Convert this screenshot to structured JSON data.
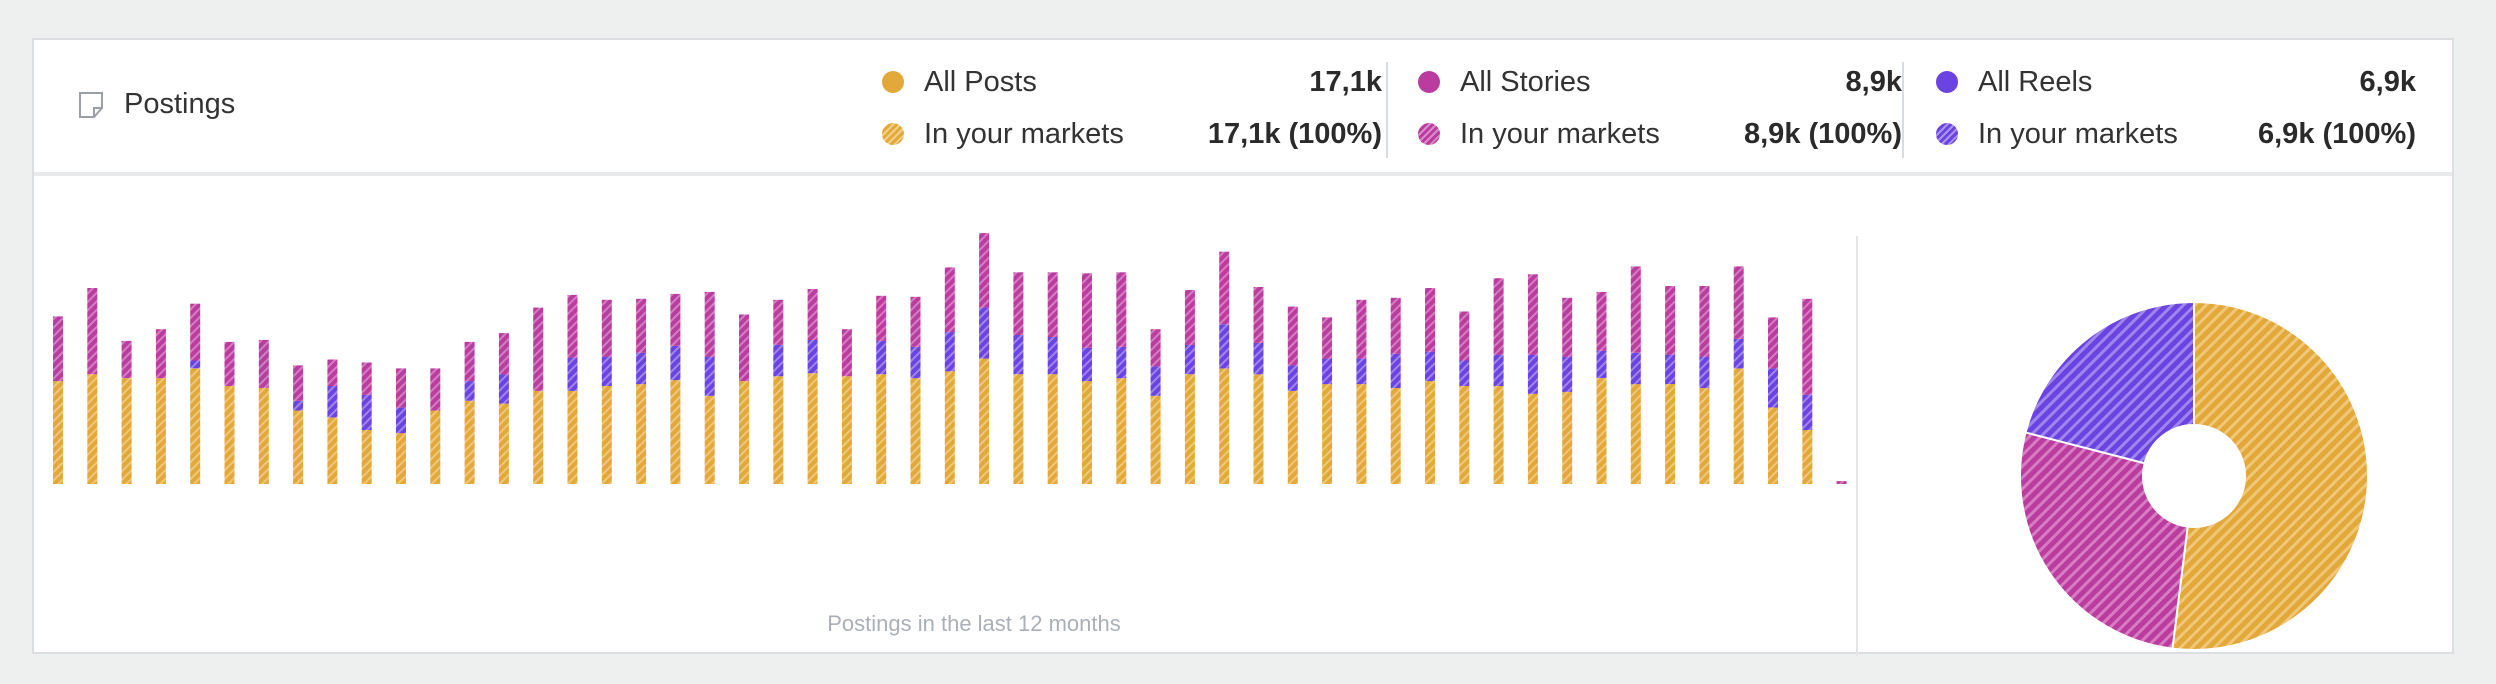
{
  "card": {
    "title": "Postings",
    "title_icon": "note-icon"
  },
  "legend": [
    {
      "name": "posts",
      "all_label": "All Posts",
      "all_value": "17,1k",
      "market_label": "In your markets",
      "market_value": "17,1k (100%)",
      "color": "#e3a83a"
    },
    {
      "name": "stories",
      "all_label": "All Stories",
      "all_value": "8,9k",
      "market_label": "In your markets",
      "market_value": "8,9k (100%)",
      "color": "#bb3c9f"
    },
    {
      "name": "reels",
      "all_label": "All Reels",
      "all_value": "6,9k",
      "market_label": "In your markets",
      "market_value": "6,9k (100%)",
      "color": "#6b43e0"
    }
  ],
  "chart_data": [
    {
      "type": "bar",
      "stacked": true,
      "caption": "Postings in the last 12 months",
      "series": [
        {
          "name": "All Posts",
          "color": "#e3a83a",
          "values": [
            105,
            112,
            108,
            108,
            118,
            100,
            98,
            75,
            68,
            55,
            52,
            75,
            85,
            82,
            95,
            95,
            100,
            102,
            106,
            90,
            105,
            110,
            113,
            110,
            112,
            108,
            115,
            128,
            112,
            112,
            105,
            108,
            90,
            112,
            118,
            112,
            95,
            102,
            102,
            98,
            105,
            100,
            100,
            92,
            94,
            108,
            102,
            102,
            98,
            118,
            78,
            55,
            0
          ]
        },
        {
          "name": "All Reels",
          "color": "#6b43e0",
          "values": [
            0,
            0,
            0,
            0,
            8,
            0,
            0,
            10,
            32,
            36,
            26,
            0,
            20,
            30,
            0,
            34,
            30,
            32,
            35,
            40,
            0,
            32,
            34,
            0,
            34,
            32,
            40,
            52,
            40,
            38,
            34,
            32,
            30,
            30,
            45,
            32,
            26,
            26,
            26,
            35,
            30,
            26,
            32,
            40,
            36,
            28,
            32,
            30,
            32,
            30,
            40,
            36,
            0
          ]
        },
        {
          "name": "All Stories",
          "color": "#bb3c9f",
          "values": [
            66,
            88,
            38,
            50,
            58,
            45,
            49,
            36,
            27,
            33,
            40,
            43,
            40,
            42,
            85,
            64,
            58,
            55,
            53,
            66,
            68,
            46,
            52,
            48,
            46,
            51,
            66,
            76,
            64,
            66,
            76,
            76,
            38,
            56,
            74,
            57,
            60,
            42,
            60,
            57,
            65,
            50,
            78,
            82,
            60,
            60,
            88,
            70,
            72,
            74,
            52,
            98,
            3
          ]
        }
      ]
    },
    {
      "type": "pie",
      "donut": true,
      "series": [
        {
          "name": "All Posts",
          "value": 17.1,
          "color": "#e3a83a"
        },
        {
          "name": "All Stories",
          "value": 8.9,
          "color": "#bb3c9f"
        },
        {
          "name": "All Reels",
          "value": 6.9,
          "color": "#6b43e0"
        }
      ]
    }
  ]
}
